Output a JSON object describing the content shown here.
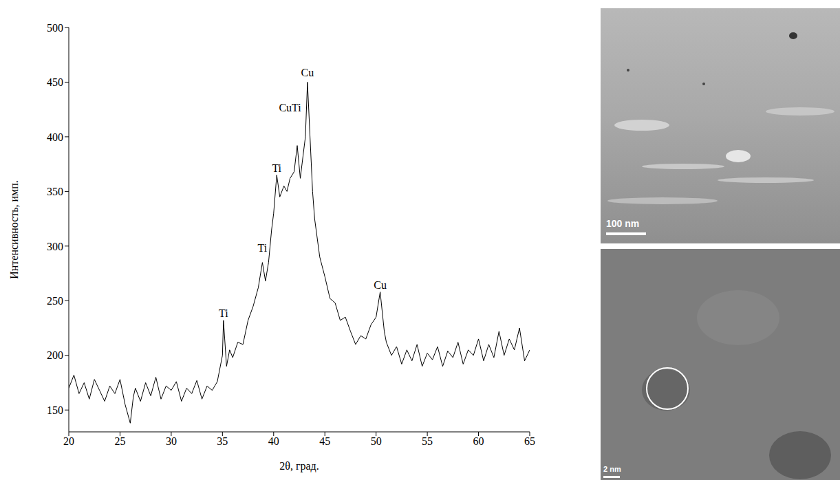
{
  "chart_data": {
    "type": "line",
    "x_label": "2θ, град.",
    "y_label": "Интенсивность, имп.",
    "color": "#000000",
    "grid": false,
    "xlim": [
      20,
      65
    ],
    "xticks": [
      20,
      25,
      30,
      35,
      40,
      45,
      50,
      55,
      60,
      65
    ],
    "ylim": [
      130,
      500
    ],
    "yticks": [
      150,
      200,
      250,
      300,
      350,
      400,
      450,
      500
    ],
    "x": [
      20,
      20.5,
      21,
      21.5,
      22,
      22.5,
      23,
      23.5,
      24,
      24.5,
      25,
      25.5,
      26,
      26.3,
      26.5,
      27,
      27.5,
      28,
      28.5,
      29,
      29.5,
      30,
      30.5,
      31,
      31.5,
      32,
      32.5,
      33,
      33.5,
      34,
      34.5,
      35,
      35.1,
      35.4,
      35.7,
      36,
      36.5,
      37,
      37.5,
      38,
      38.5,
      38.9,
      39.2,
      39.5,
      39.8,
      40,
      40.3,
      40.6,
      41,
      41.3,
      41.6,
      42,
      42.3,
      42.6,
      42.9,
      43.1,
      43.3,
      43.5,
      43.8,
      44,
      44.5,
      45,
      45.5,
      46,
      46.5,
      47,
      47.5,
      48,
      48.5,
      49,
      49.5,
      50,
      50.4,
      50.8,
      51,
      51.5,
      52,
      52.5,
      53,
      53.5,
      54,
      54.5,
      55,
      55.5,
      56,
      56.5,
      57,
      57.5,
      58,
      58.5,
      59,
      59.5,
      60,
      60.5,
      61,
      61.5,
      62,
      62.5,
      63,
      63.5,
      64,
      64.5,
      65
    ],
    "values": [
      170,
      182,
      165,
      175,
      160,
      178,
      168,
      158,
      172,
      165,
      178,
      155,
      138,
      162,
      170,
      158,
      175,
      163,
      180,
      160,
      172,
      168,
      176,
      158,
      170,
      165,
      177,
      160,
      172,
      168,
      176,
      200,
      232,
      190,
      205,
      198,
      212,
      210,
      232,
      245,
      262,
      285,
      268,
      285,
      315,
      330,
      365,
      345,
      355,
      350,
      362,
      368,
      392,
      362,
      385,
      400,
      450,
      410,
      350,
      325,
      290,
      272,
      252,
      248,
      232,
      235,
      222,
      210,
      218,
      215,
      228,
      235,
      258,
      222,
      212,
      200,
      208,
      192,
      205,
      195,
      210,
      190,
      202,
      196,
      208,
      190,
      204,
      198,
      212,
      192,
      205,
      200,
      215,
      195,
      210,
      198,
      222,
      200,
      215,
      205,
      225,
      195,
      205
    ],
    "annotations": [
      {
        "text": "Ti",
        "x": 35.1,
        "y": 232
      },
      {
        "text": "Ti",
        "x": 38.9,
        "y": 292
      },
      {
        "text": "Ti",
        "x": 40.3,
        "y": 365
      },
      {
        "text": "CuTi",
        "x": 41.6,
        "y": 420
      },
      {
        "text": "Cu",
        "x": 43.3,
        "y": 452
      },
      {
        "text": "Cu",
        "x": 50.4,
        "y": 258
      }
    ]
  },
  "images": [
    {
      "scale_bar": "100 nm"
    },
    {
      "scale_bar": "2 nm"
    }
  ]
}
